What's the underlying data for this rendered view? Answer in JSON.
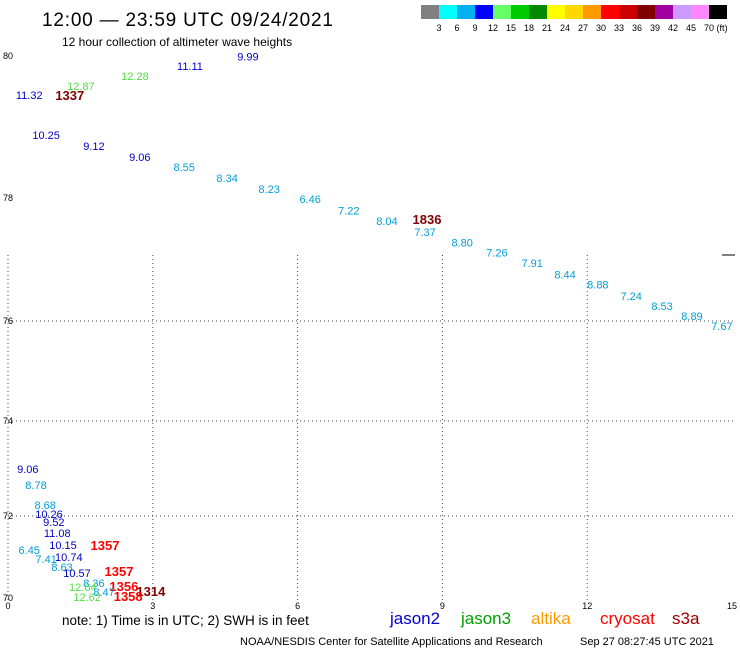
{
  "header": {
    "title": "12:00 — 23:59 UTC 09/24/2021",
    "subtitle": "12 hour collection of altimeter wave heights"
  },
  "color_scale": {
    "colors": [
      "#808080",
      "#00ffff",
      "#00b0f0",
      "#0000ff",
      "#66ff66",
      "#00cc00",
      "#008800",
      "#ffff00",
      "#ffd700",
      "#ff9900",
      "#ff0000",
      "#cc0000",
      "#800000",
      "#a000a0",
      "#cc99ff",
      "#ff88ff",
      "#000000"
    ],
    "labels": [
      "3",
      "6",
      "9",
      "12",
      "15",
      "18",
      "21",
      "24",
      "27",
      "30",
      "33",
      "36",
      "39",
      "42",
      "45",
      "70"
    ],
    "unit": "(ft)"
  },
  "map": {
    "lat_ticks": [
      80,
      78,
      76,
      74,
      72,
      70
    ],
    "lon_ticks": [
      0,
      3,
      6,
      9,
      12,
      15
    ],
    "observations": [
      {
        "text": "9.99",
        "lon": 4.97,
        "lat": 79.99,
        "color": "#0000c8"
      },
      {
        "text": "11.11",
        "lon": 3.77,
        "lat": 79.86,
        "color": "#0000c8"
      },
      {
        "text": "12.28",
        "lon": 2.63,
        "lat": 79.72,
        "color": "#55dd44"
      },
      {
        "text": "12.87",
        "lon": 1.51,
        "lat": 79.58,
        "color": "#55dd44"
      },
      {
        "text": "11.32",
        "lon": 0.44,
        "lat": 79.45,
        "color": "#0000c8"
      },
      {
        "text": "1337",
        "lon": 1.28,
        "lat": 79.44,
        "color": "#800000"
      },
      {
        "text": "10.25",
        "lon": 0.79,
        "lat": 78.89,
        "color": "#0000c8"
      },
      {
        "text": "9.12",
        "lon": 1.78,
        "lat": 78.73,
        "color": "#0000c8"
      },
      {
        "text": "9.06",
        "lon": 2.73,
        "lat": 78.58,
        "color": "#0000c8"
      },
      {
        "text": "8.55",
        "lon": 3.65,
        "lat": 78.44,
        "color": "#00a0d8"
      },
      {
        "text": "8.34",
        "lon": 4.54,
        "lat": 78.28,
        "color": "#00a0d8"
      },
      {
        "text": "8.23",
        "lon": 5.41,
        "lat": 78.13,
        "color": "#00a0d8"
      },
      {
        "text": "6.46",
        "lon": 6.26,
        "lat": 77.98,
        "color": "#00a0d8"
      },
      {
        "text": "7.22",
        "lon": 7.06,
        "lat": 77.8,
        "color": "#00a0d8"
      },
      {
        "text": "8.04",
        "lon": 7.85,
        "lat": 77.63,
        "color": "#00a0d8"
      },
      {
        "text": "1836",
        "lon": 8.68,
        "lat": 77.64,
        "color": "#800000"
      },
      {
        "text": "7.37",
        "lon": 8.64,
        "lat": 77.45,
        "color": "#00a0d8"
      },
      {
        "text": "8.80",
        "lon": 9.41,
        "lat": 77.28,
        "color": "#00a0d8"
      },
      {
        "text": "7.26",
        "lon": 10.13,
        "lat": 77.11,
        "color": "#00a0d8"
      },
      {
        "text": "7.91",
        "lon": 10.86,
        "lat": 76.94,
        "color": "#00a0d8"
      },
      {
        "text": "8.44",
        "lon": 11.54,
        "lat": 76.76,
        "color": "#00a0d8"
      },
      {
        "text": "8.88",
        "lon": 12.22,
        "lat": 76.59,
        "color": "#00a0d8"
      },
      {
        "text": "7.24",
        "lon": 12.91,
        "lat": 76.41,
        "color": "#00a0d8"
      },
      {
        "text": "8.53",
        "lon": 13.55,
        "lat": 76.24,
        "color": "#00a0d8"
      },
      {
        "text": "8.89",
        "lon": 14.17,
        "lat": 76.08,
        "color": "#00a0d8"
      },
      {
        "text": "7.67",
        "lon": 14.79,
        "lat": 75.9,
        "color": "#00a0d8"
      },
      {
        "text": "9.06",
        "lon": 0.41,
        "lat": 72.99,
        "color": "#0000c8"
      },
      {
        "text": "8.78",
        "lon": 0.58,
        "lat": 72.65,
        "color": "#00a0d8"
      },
      {
        "text": "8.68",
        "lon": 0.77,
        "lat": 72.23,
        "color": "#00a0d8"
      },
      {
        "text": "10.26",
        "lon": 0.85,
        "lat": 72.04,
        "color": "#0000c8"
      },
      {
        "text": "9.52",
        "lon": 0.95,
        "lat": 71.85,
        "color": "#0000c8"
      },
      {
        "text": "11.08",
        "lon": 1.02,
        "lat": 71.59,
        "color": "#0000c8"
      },
      {
        "text": "10.15",
        "lon": 1.14,
        "lat": 71.29,
        "color": "#0000c8"
      },
      {
        "text": "6.45",
        "lon": 0.44,
        "lat": 71.17,
        "color": "#00a0d8"
      },
      {
        "text": "1357",
        "lon": 2.01,
        "lat": 71.27,
        "color": "#ff0000"
      },
      {
        "text": "10.74",
        "lon": 1.26,
        "lat": 71.0,
        "color": "#0000c8"
      },
      {
        "text": "7.41",
        "lon": 0.79,
        "lat": 70.95,
        "color": "#00a0d8"
      },
      {
        "text": "8.63",
        "lon": 1.12,
        "lat": 70.76,
        "color": "#00a0d8"
      },
      {
        "text": "10.57",
        "lon": 1.43,
        "lat": 70.61,
        "color": "#0000c8"
      },
      {
        "text": "1357",
        "lon": 2.3,
        "lat": 70.63,
        "color": "#ff0000"
      },
      {
        "text": "8.36",
        "lon": 1.78,
        "lat": 70.37,
        "color": "#00a0d8"
      },
      {
        "text": "12.64",
        "lon": 1.55,
        "lat": 70.27,
        "color": "#55dd44"
      },
      {
        "text": "1356",
        "lon": 2.4,
        "lat": 70.27,
        "color": "#ff0000"
      },
      {
        "text": "8.47",
        "lon": 1.99,
        "lat": 70.15,
        "color": "#00a0d8"
      },
      {
        "text": "12.62",
        "lon": 1.64,
        "lat": 70.02,
        "color": "#55dd44"
      },
      {
        "text": "1314",
        "lon": 2.96,
        "lat": 70.15,
        "color": "#800000"
      },
      {
        "text": "1358",
        "lon": 2.49,
        "lat": 70.02,
        "color": "#ff0000"
      }
    ]
  },
  "legend": {
    "note": "note: 1) Time is in UTC; 2) SWH is in feet",
    "satellites": [
      {
        "name": "jason2",
        "color": "#0000d0"
      },
      {
        "name": "jason3",
        "color": "#00a000"
      },
      {
        "name": "altika",
        "color": "#ff9900"
      },
      {
        "name": "cryosat",
        "color": "#ff0000"
      },
      {
        "name": "s3a",
        "color": "#a00000"
      }
    ]
  },
  "footer": {
    "credit": "NOAA/NESDIS Center for Satellite Applications and Research",
    "timestamp": "Sep 27 08:27:45 UTC 2021"
  }
}
